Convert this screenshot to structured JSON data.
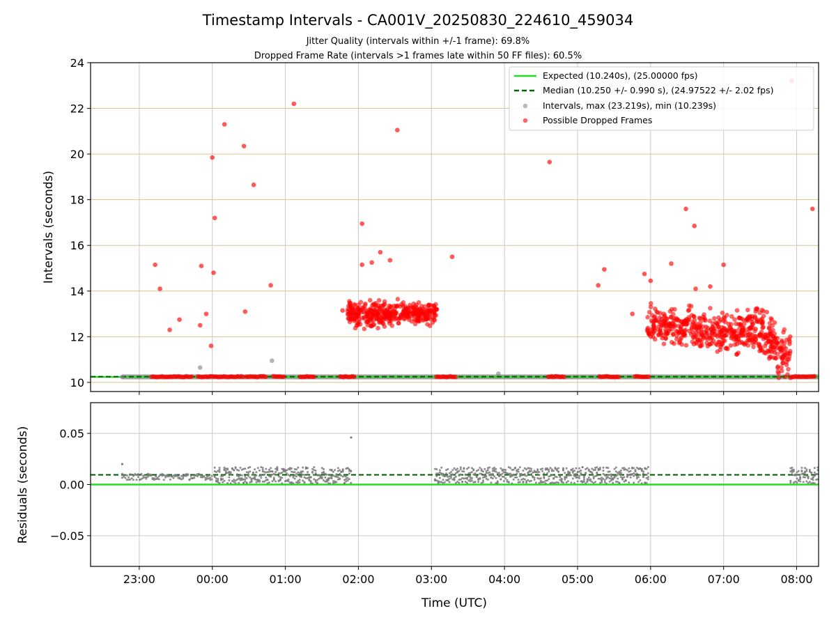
{
  "chart_data": {
    "type": "scatter",
    "title": "Timestamp Intervals - CA001V_20250830_224610_459034",
    "subtitle_lines": [
      "Jitter Quality (intervals within +/-1 frame): 69.8%",
      "Dropped Frame Rate (intervals >1 frames late within 50 FF files): 60.5%"
    ],
    "top_panel": {
      "ylabel": "Intervals (seconds)",
      "ylim": [
        9.6,
        24
      ],
      "yticks": [
        10,
        12,
        14,
        16,
        18,
        20,
        22,
        24
      ],
      "grid": "horizontal lines (tan) and vertical lines (gray)",
      "legend_position": "top-right",
      "series": [
        {
          "name": "Expected (10.240s), (25.00000 fps)",
          "style": "solid line",
          "color": "#22dd22",
          "value": 10.24
        },
        {
          "name": "Median (10.250 +/- 0.990 s), (24.97522 +/- 2.02 fps)",
          "style": "dashed line",
          "color": "#006400",
          "value": 10.25
        },
        {
          "name": "Intervals, max (23.219s), min (10.239s)",
          "style": "gray points",
          "color": "#808080"
        },
        {
          "name": "Possible Dropped Frames",
          "style": "red points",
          "color": "#ff0000"
        }
      ],
      "dropped_frames_outliers": [
        {
          "x": "23:13",
          "y": 15.15
        },
        {
          "x": "23:17",
          "y": 14.1
        },
        {
          "x": "23:25",
          "y": 12.3
        },
        {
          "x": "23:33",
          "y": 12.75
        },
        {
          "x": "23:50",
          "y": 12.5
        },
        {
          "x": "23:51",
          "y": 15.1
        },
        {
          "x": "23:55",
          "y": 13.0
        },
        {
          "x": "23:59",
          "y": 11.6
        },
        {
          "x": "00:00",
          "y": 19.85
        },
        {
          "x": "00:01",
          "y": 14.8
        },
        {
          "x": "00:02",
          "y": 17.2
        },
        {
          "x": "00:10",
          "y": 21.3
        },
        {
          "x": "00:26",
          "y": 20.35
        },
        {
          "x": "00:27",
          "y": 13.1
        },
        {
          "x": "00:34",
          "y": 18.65
        },
        {
          "x": "00:48",
          "y": 14.25
        },
        {
          "x": "01:07",
          "y": 22.2
        },
        {
          "x": "01:47",
          "y": 13.15
        },
        {
          "x": "02:03",
          "y": 15.15
        },
        {
          "x": "02:03",
          "y": 16.95
        },
        {
          "x": "02:11",
          "y": 15.25
        },
        {
          "x": "02:18",
          "y": 15.7
        },
        {
          "x": "02:26",
          "y": 15.35
        },
        {
          "x": "02:32",
          "y": 21.05
        },
        {
          "x": "03:17",
          "y": 15.5
        },
        {
          "x": "04:37",
          "y": 19.65
        },
        {
          "x": "05:17",
          "y": 14.25
        },
        {
          "x": "05:22",
          "y": 14.95
        },
        {
          "x": "05:45",
          "y": 13.0
        },
        {
          "x": "05:55",
          "y": 14.75
        },
        {
          "x": "06:00",
          "y": 14.45
        },
        {
          "x": "06:17",
          "y": 15.2
        },
        {
          "x": "06:29",
          "y": 17.6
        },
        {
          "x": "06:36",
          "y": 16.85
        },
        {
          "x": "06:37",
          "y": 14.1
        },
        {
          "x": "06:49",
          "y": 14.2
        },
        {
          "x": "07:00",
          "y": 15.15
        },
        {
          "x": "07:56",
          "y": 23.2
        },
        {
          "x": "08:13",
          "y": 17.6
        }
      ],
      "dropped_frame_clusters": [
        {
          "x_range": [
            "01:51",
            "03:05"
          ],
          "y_range": [
            11.6,
            14.0
          ],
          "typical_y": 13.0
        },
        {
          "x_range": [
            "05:57",
            "07:55"
          ],
          "y_range": [
            10.2,
            13.5
          ],
          "typical_y": 12.5
        }
      ],
      "dropped_frames_at_expected_intervals": [
        [
          "23:10",
          "23:43"
        ],
        [
          "23:48",
          "00:26"
        ],
        [
          "00:28",
          "00:45"
        ],
        [
          "00:50",
          "00:59"
        ],
        [
          "01:12",
          "01:24"
        ],
        [
          "01:45",
          "01:57"
        ],
        [
          "03:04",
          "03:21"
        ],
        [
          "04:36",
          "04:49"
        ],
        [
          "05:18",
          "05:35"
        ],
        [
          "05:47",
          "05:59"
        ],
        [
          "07:56",
          "08:16"
        ]
      ],
      "gray_interval_points": [
        {
          "x": "23:50",
          "y": 10.65
        },
        {
          "x": "00:49",
          "y": 10.95
        },
        {
          "x": "03:55",
          "y": 10.38
        }
      ],
      "gray_band": {
        "x_range": [
          "22:46",
          "08:18"
        ],
        "y": 10.24
      }
    },
    "bottom_panel": {
      "ylabel": "Residuals (seconds)",
      "ylim": [
        -0.08,
        0.08
      ],
      "yticks": [
        0.05,
        0.0,
        -0.05
      ],
      "ytick_labels": [
        "0.05",
        "0.00",
        "−0.05"
      ],
      "expected_line_value": 0.0,
      "median_line_value": 0.0095,
      "residual_point_segments": [
        {
          "x_range": [
            "22:46",
            "00:00"
          ],
          "y_range": [
            -0.002,
            0.015
          ],
          "typical_y": 0.0075
        },
        {
          "x_range": [
            "00:02",
            "01:54"
          ],
          "y_range": [
            0.001,
            0.017
          ]
        },
        {
          "x_range": [
            "03:03",
            "05:59"
          ],
          "y_range": [
            0.001,
            0.017
          ]
        },
        {
          "x_range": [
            "07:55",
            "08:18"
          ],
          "y_range": [
            0.001,
            0.017
          ]
        }
      ],
      "residual_outliers": [
        {
          "x": "22:46",
          "y": 0.02
        },
        {
          "x": "01:54",
          "y": 0.046
        }
      ]
    },
    "x_axis": {
      "label": "Time (UTC)",
      "range": [
        "22:20",
        "08:18"
      ],
      "ticks": [
        "23:00",
        "00:00",
        "01:00",
        "02:00",
        "03:00",
        "04:00",
        "05:00",
        "06:00",
        "07:00",
        "08:00"
      ]
    }
  }
}
